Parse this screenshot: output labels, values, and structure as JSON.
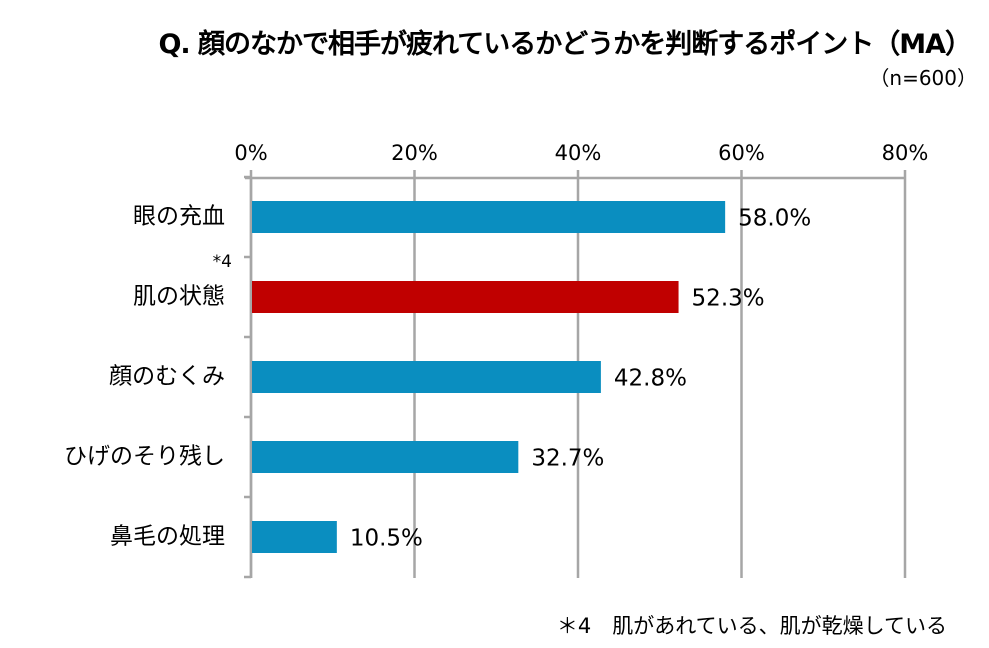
{
  "chart_data": {
    "type": "bar",
    "orientation": "horizontal",
    "title": "Q. 顔のなかで相手が疲れているかどうかを判断するポイント（MA）",
    "subtitle": "（n=600）",
    "categories": [
      "眼の充血",
      "肌の状態",
      "顔のむくみ",
      "ひげのそり残し",
      "鼻毛の処理"
    ],
    "values": [
      58.0,
      52.3,
      42.8,
      32.7,
      10.5
    ],
    "data_labels": [
      "58.0%",
      "52.3%",
      "42.8%",
      "32.7%",
      "10.5%"
    ],
    "category_annotations": [
      "",
      "*4",
      "",
      "",
      ""
    ],
    "xlim": [
      0,
      80
    ],
    "xticks": [
      0,
      20,
      40,
      60,
      80
    ],
    "xtick_labels": [
      "0%",
      "20%",
      "40%",
      "60%",
      "80%"
    ],
    "xaxis_position": "top",
    "grid": true,
    "colors": {
      "default": "#0a8ec0",
      "highlight": "#c00000",
      "grid": "#a6a6a6"
    },
    "highlight_index": 1,
    "footnote": "＊4　肌があれている、肌が乾燥している"
  }
}
